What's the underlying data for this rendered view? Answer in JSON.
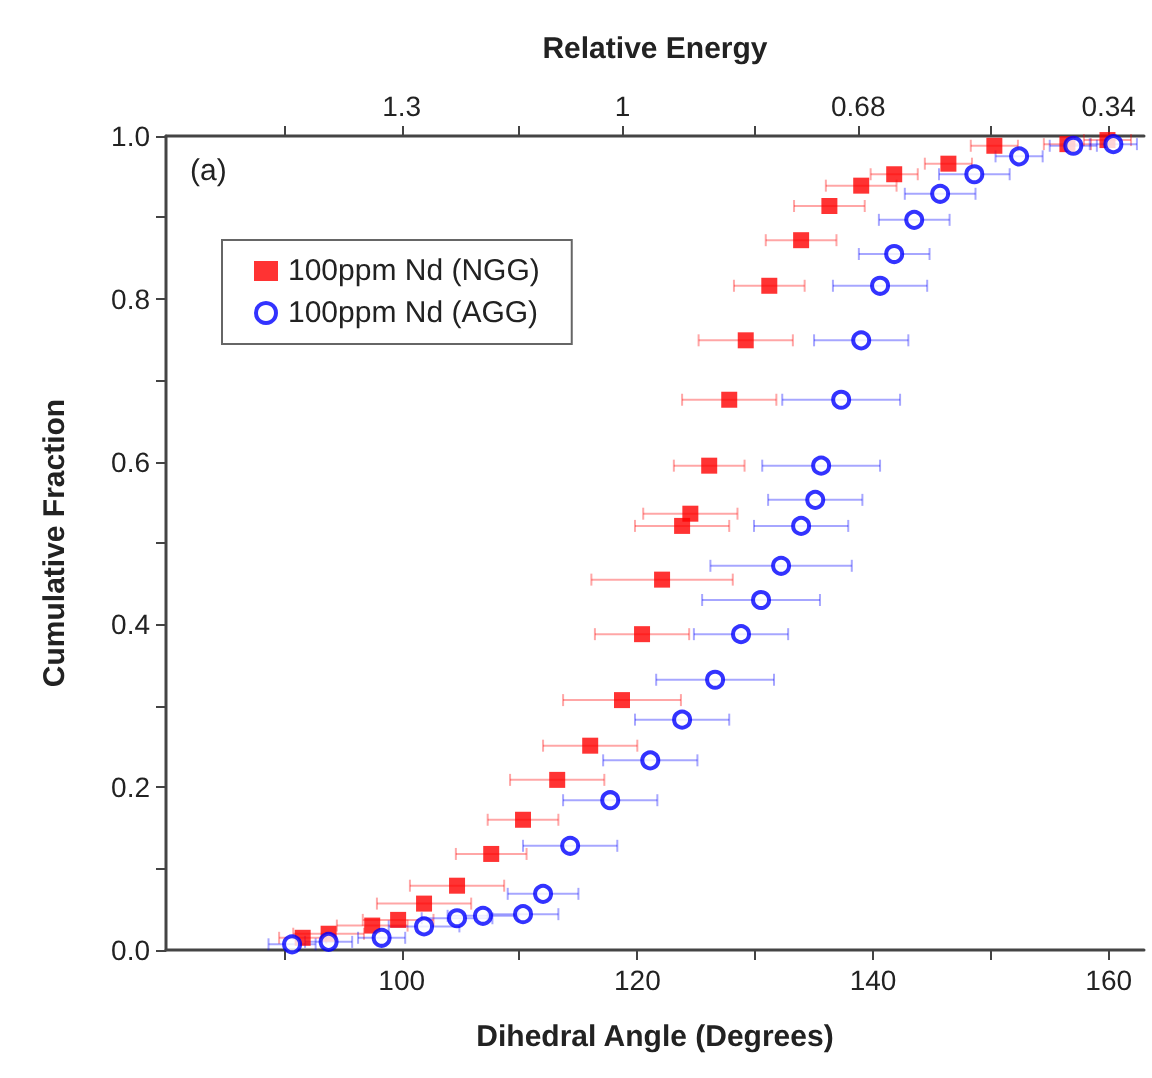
{
  "chart_data": {
    "type": "scatter",
    "xlabel": "Dihedral Angle (Degrees)",
    "ylabel": "Cumulative Fraction",
    "x2label": "Relative Energy",
    "annotations": [
      "(a)"
    ],
    "xlim": [
      80,
      163
    ],
    "xticks": [
      {
        "value": 90,
        "label": null
      },
      100,
      {
        "value": 110,
        "label": null
      },
      120,
      {
        "value": 130,
        "label": null
      },
      140,
      {
        "value": 150,
        "label": null
      },
      160
    ],
    "x2lim": [
      1.62,
      0.292
    ],
    "x2ticks": [
      {
        "value": 1.46,
        "label": null
      },
      1.3,
      {
        "value": 1.14,
        "label": null
      },
      1,
      {
        "value": 0.82,
        "label": null
      },
      0.68,
      {
        "value": 0.5,
        "label": null
      },
      0.34
    ],
    "ylim": [
      0,
      1
    ],
    "yticks": [
      {
        "value": 0,
        "label": "0.0"
      },
      {
        "value": 0.1,
        "label": null
      },
      {
        "value": 0.2,
        "label": "0.2"
      },
      {
        "value": 0.3,
        "label": null
      },
      {
        "value": 0.4,
        "label": "0.4"
      },
      {
        "value": 0.5,
        "label": null
      },
      {
        "value": 0.6,
        "label": "0.6"
      },
      {
        "value": 0.7,
        "label": null
      },
      {
        "value": 0.8,
        "label": "0.8"
      },
      {
        "value": 0.9,
        "label": null
      },
      {
        "value": 1,
        "label": "1.0"
      }
    ],
    "grid": false,
    "legend": "top left",
    "series": [
      {
        "name": "100ppm Nd (NGG)",
        "color": "#ff0000",
        "marker": "square",
        "x": [
          91.6,
          93.8,
          97.5,
          99.7,
          101.9,
          104.7,
          107.6,
          110.3,
          113.2,
          116,
          118.7,
          120.4,
          122.1,
          123.8,
          124.5,
          126.1,
          127.8,
          129.2,
          131.2,
          133.9,
          136.3,
          139,
          141.8,
          146.4,
          150.3,
          156.5,
          159.9
        ],
        "values": [
          0.015,
          0.02,
          0.03,
          0.037,
          0.057,
          0.079,
          0.118,
          0.16,
          0.209,
          0.251,
          0.307,
          0.388,
          0.455,
          0.521,
          0.536,
          0.595,
          0.676,
          0.749,
          0.816,
          0.872,
          0.914,
          0.939,
          0.953,
          0.966,
          0.988,
          0.99,
          0.995
        ],
        "xerrors": [
          2,
          3,
          3,
          3,
          4,
          4,
          3,
          3,
          4,
          4,
          5,
          4,
          6,
          4,
          4,
          3,
          4,
          4,
          3,
          3,
          3,
          3,
          2,
          2,
          2,
          2,
          2
        ]
      },
      {
        "name": "100ppm Nd (AGG)",
        "color": "#0000ff",
        "marker": "circle",
        "x": [
          90.7,
          93.8,
          98.3,
          101.9,
          104.7,
          106.9,
          110.3,
          112,
          114.3,
          117.7,
          121.1,
          123.8,
          126.6,
          128.8,
          130.5,
          132.2,
          133.9,
          135.1,
          135.6,
          137.3,
          139,
          140.6,
          141.8,
          143.5,
          145.7,
          148.6,
          152.4,
          157,
          160.4
        ],
        "values": [
          0.007,
          0.01,
          0.015,
          0.029,
          0.039,
          0.042,
          0.044,
          0.069,
          0.128,
          0.184,
          0.233,
          0.283,
          0.332,
          0.388,
          0.43,
          0.472,
          0.521,
          0.553,
          0.595,
          0.676,
          0.749,
          0.816,
          0.855,
          0.897,
          0.929,
          0.953,
          0.975,
          0.988,
          0.99
        ],
        "xerrors": [
          2,
          2,
          2,
          3,
          3,
          3,
          3,
          3,
          4,
          4,
          4,
          4,
          5,
          4,
          5,
          6,
          4,
          4,
          5,
          5,
          4,
          4,
          3,
          3,
          3,
          3,
          2,
          2,
          2
        ]
      }
    ]
  }
}
